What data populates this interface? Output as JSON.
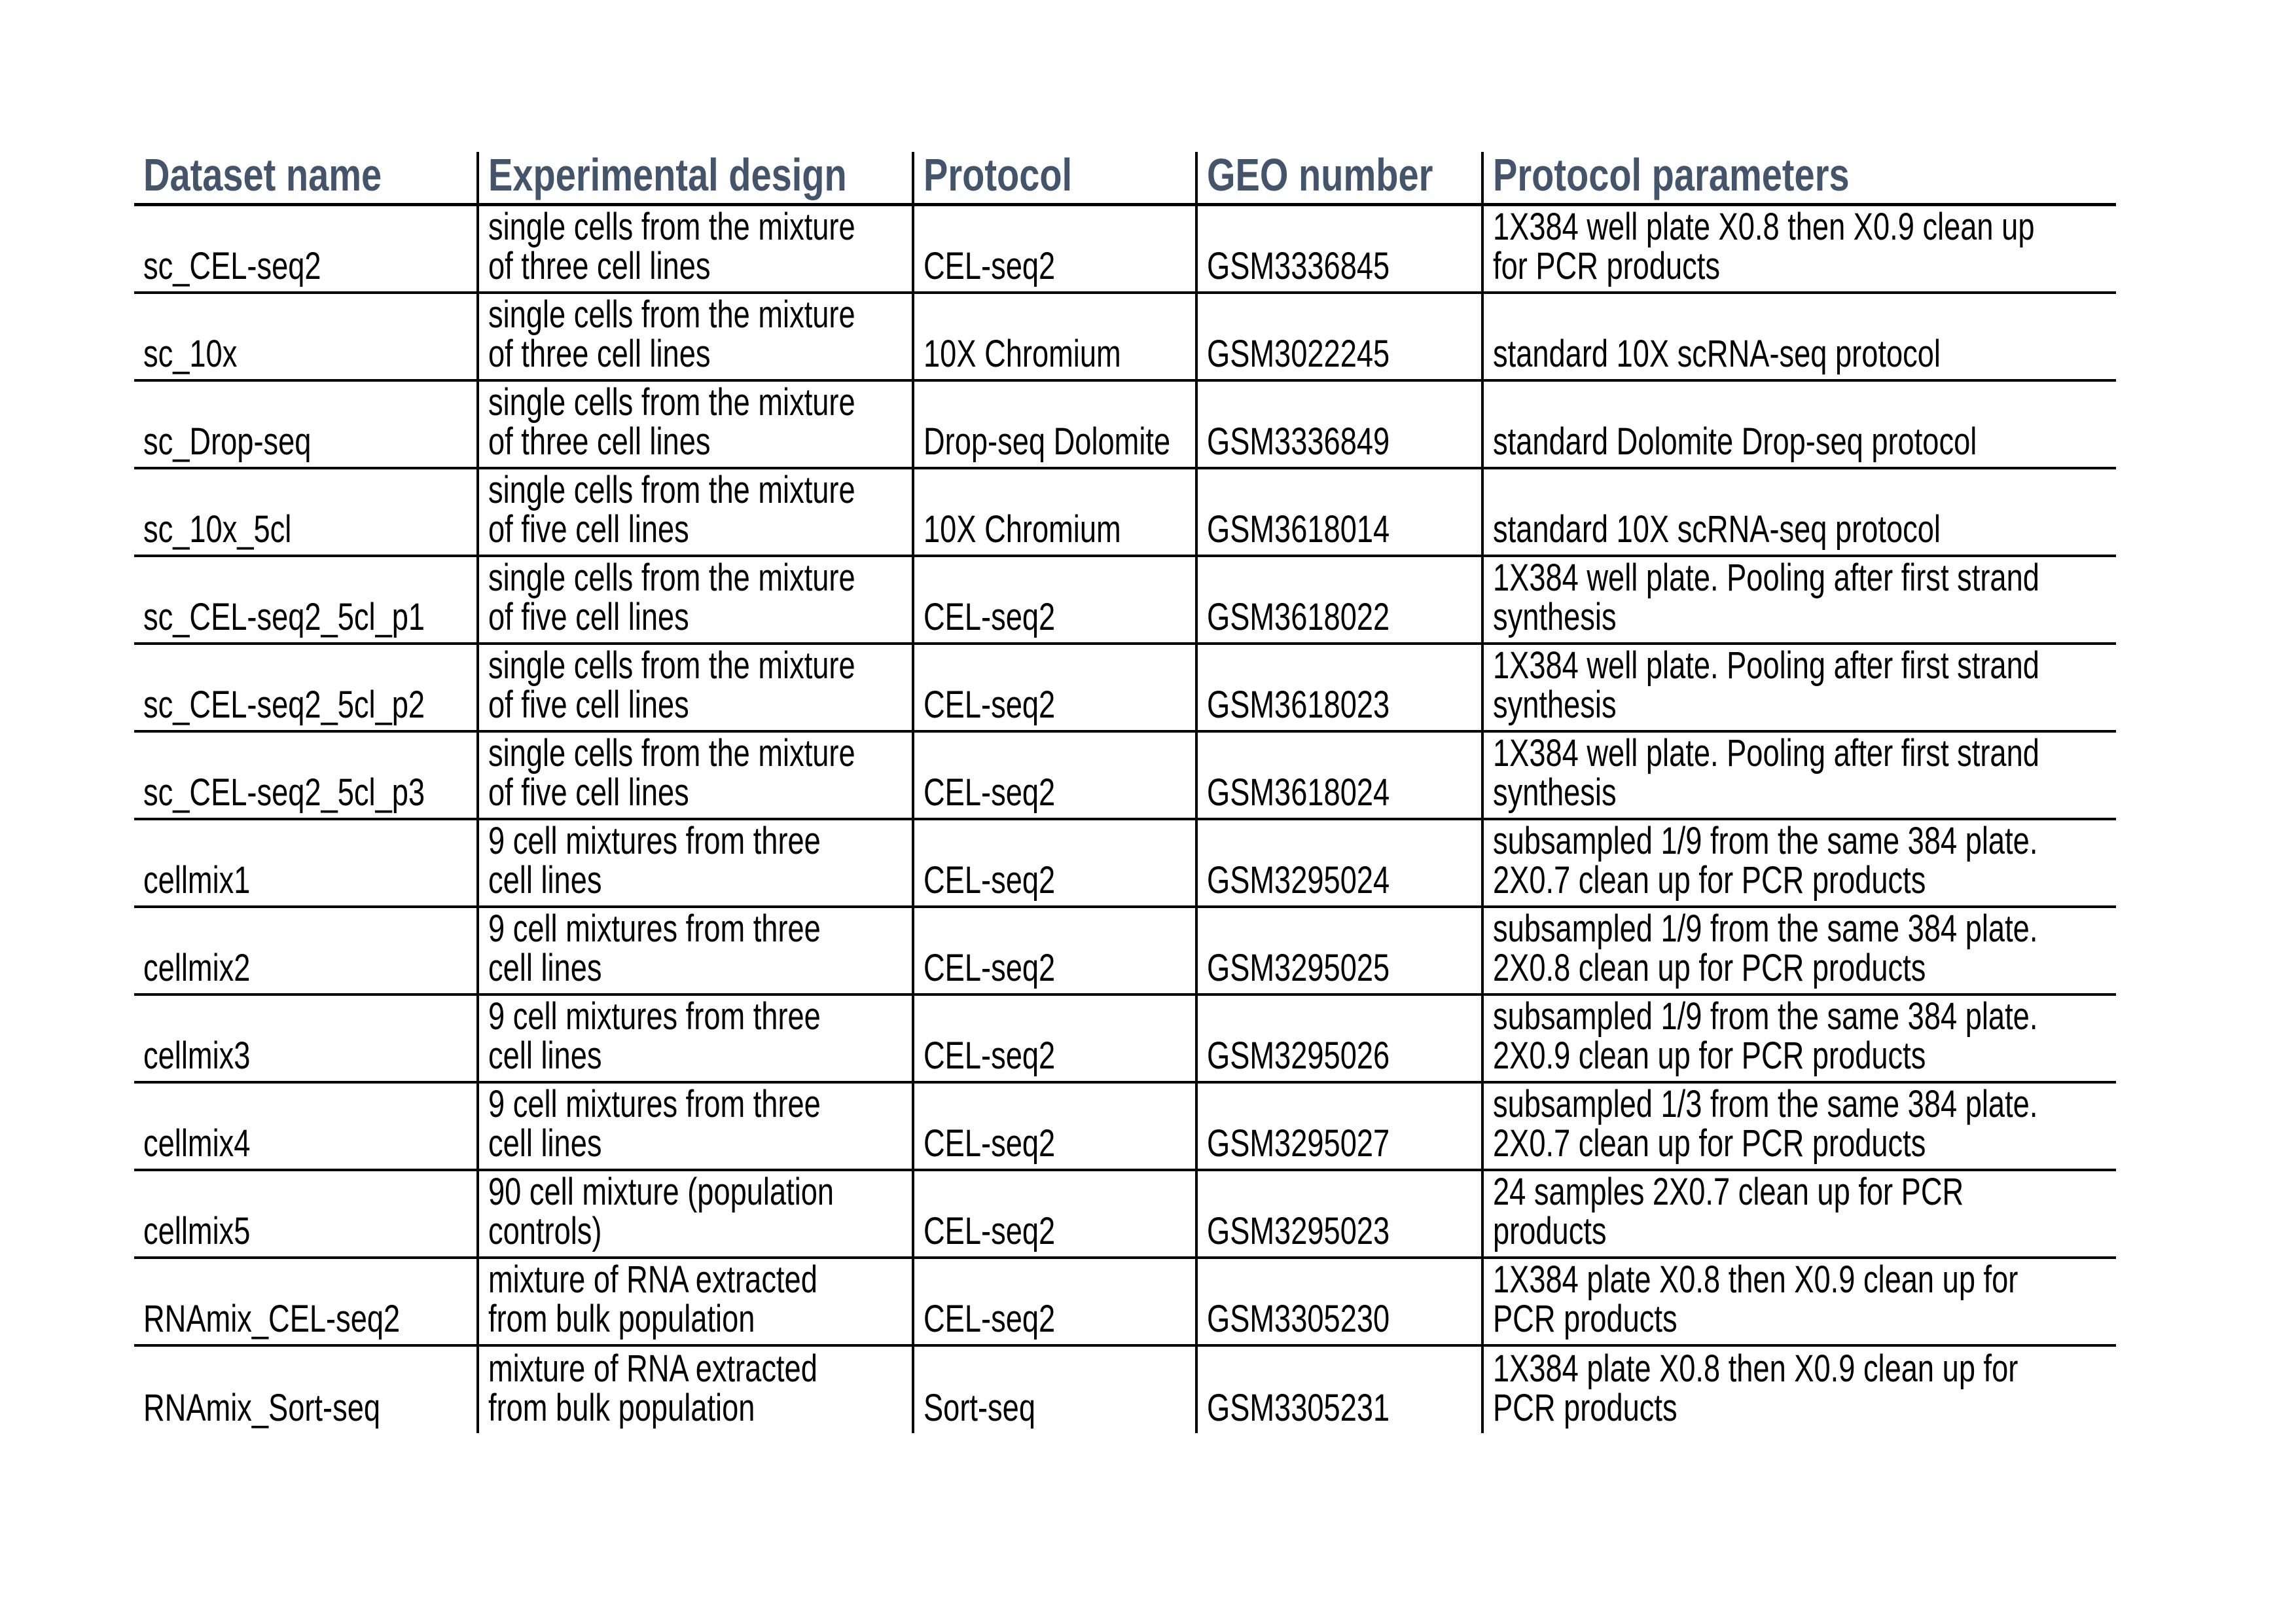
{
  "page": {
    "background": "#ffffff"
  },
  "table": {
    "header_text_color": "#44546A",
    "border_color": "#000000",
    "header": {
      "dataset": "Dataset name",
      "design": "Experimental design",
      "protocol": "Protocol",
      "geo": "GEO number",
      "params": "Protocol parameters"
    },
    "rows": [
      {
        "dataset": "sc_CEL-seq2",
        "design": "single cells from the mixture\nof three cell lines",
        "protocol": "CEL-seq2",
        "geo": "GSM3336845",
        "params": "1X384 well plate X0.8 then X0.9 clean up\nfor PCR products"
      },
      {
        "dataset": "sc_10x",
        "design": "single cells from the mixture\nof three cell lines",
        "protocol": "10X Chromium",
        "geo": "GSM3022245",
        "params": "standard 10X scRNA-seq protocol"
      },
      {
        "dataset": "sc_Drop-seq",
        "design": "single cells from the mixture\nof three cell lines",
        "protocol": "Drop-seq Dolomite",
        "geo": "GSM3336849",
        "params": "standard Dolomite Drop-seq protocol"
      },
      {
        "dataset": "sc_10x_5cl",
        "design": "single cells from the mixture\nof five cell lines",
        "protocol": "10X Chromium",
        "geo": "GSM3618014",
        "params": "standard 10X scRNA-seq protocol"
      },
      {
        "dataset": "sc_CEL-seq2_5cl_p1",
        "design": "single cells from the mixture\nof five cell lines",
        "protocol": "CEL-seq2",
        "geo": "GSM3618022",
        "params": "1X384 well plate. Pooling after first strand\nsynthesis"
      },
      {
        "dataset": "sc_CEL-seq2_5cl_p2",
        "design": "single cells from the mixture\nof five cell lines",
        "protocol": "CEL-seq2",
        "geo": "GSM3618023",
        "params": "1X384 well plate. Pooling after first strand\nsynthesis"
      },
      {
        "dataset": "sc_CEL-seq2_5cl_p3",
        "design": "single cells from the mixture\nof five cell lines",
        "protocol": "CEL-seq2",
        "geo": "GSM3618024",
        "params": "1X384 well plate. Pooling after first strand\nsynthesis"
      },
      {
        "dataset": "cellmix1",
        "design": "9 cell mixtures from three\ncell lines",
        "protocol": "CEL-seq2",
        "geo": "GSM3295024",
        "params": "subsampled 1/9 from the same 384 plate.\n2X0.7 clean up for PCR products"
      },
      {
        "dataset": "cellmix2",
        "design": "9 cell mixtures from three\ncell lines",
        "protocol": "CEL-seq2",
        "geo": "GSM3295025",
        "params": "subsampled 1/9 from the same 384 plate.\n2X0.8 clean up for PCR products"
      },
      {
        "dataset": "cellmix3",
        "design": "9 cell mixtures from three\ncell lines",
        "protocol": "CEL-seq2",
        "geo": "GSM3295026",
        "params": "subsampled 1/9 from the same 384 plate.\n2X0.9 clean up for PCR products"
      },
      {
        "dataset": "cellmix4",
        "design": "9 cell mixtures from three\ncell lines",
        "protocol": "CEL-seq2",
        "geo": "GSM3295027",
        "params": "subsampled 1/3 from the same 384 plate.\n2X0.7 clean up for PCR products"
      },
      {
        "dataset": "cellmix5",
        "design": "90 cell mixture (population\ncontrols)",
        "protocol": "CEL-seq2",
        "geo": "GSM3295023",
        "params": "24 samples 2X0.7 clean up for PCR\nproducts"
      },
      {
        "dataset": "RNAmix_CEL-seq2",
        "design": "mixture of RNA extracted\nfrom bulk population",
        "protocol": "CEL-seq2",
        "geo": "GSM3305230",
        "params": "1X384 plate X0.8 then X0.9 clean up for\nPCR products"
      },
      {
        "dataset": "RNAmix_Sort-seq",
        "design": "mixture of RNA extracted\nfrom bulk population",
        "protocol": "Sort-seq",
        "geo": "GSM3305231",
        "params": "1X384 plate X0.8 then X0.9 clean up for\nPCR products"
      }
    ]
  }
}
